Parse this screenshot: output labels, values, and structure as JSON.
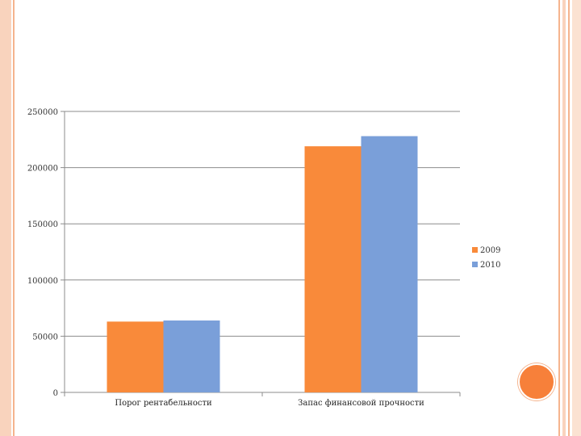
{
  "decor": {
    "accent": "#f7803a",
    "frame_light": "#f9d3bd",
    "frame_mid": "#f5b48e"
  },
  "chart_data": {
    "type": "bar",
    "categories": [
      "Порог рентабельности",
      "Запас финансовой прочности"
    ],
    "series": [
      {
        "name": "2009",
        "color": "#f98a3a",
        "values": [
          63000,
          219000
        ]
      },
      {
        "name": "2010",
        "color": "#7a9fd9",
        "values": [
          64000,
          228000
        ]
      }
    ],
    "yticks": [
      "0",
      "50000",
      "100000",
      "150000",
      "200000",
      "250000"
    ],
    "ylim": [
      0,
      250000
    ],
    "grid": true,
    "legend_position": "right",
    "title": "",
    "xlabel": "",
    "ylabel": ""
  }
}
